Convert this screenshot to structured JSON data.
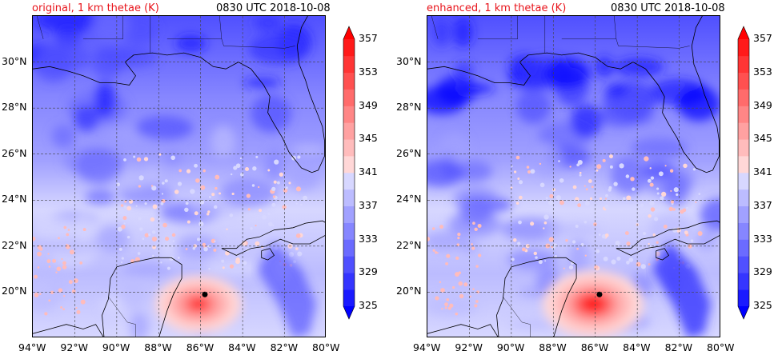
{
  "panels": [
    {
      "id": "original",
      "title": "original, 1 km thetae (K)",
      "timestamp": "0830 UTC 2018-10-08"
    },
    {
      "id": "enhanced",
      "title": "enhanced, 1 km thetae (K)",
      "timestamp": "0830 UTC 2018-10-08"
    }
  ],
  "chart_data": {
    "type": "heatmap",
    "variable": "1 km thetae (K)",
    "x_ticks": [
      "94°W",
      "92°W",
      "90°W",
      "88°W",
      "86°W",
      "84°W",
      "82°W",
      "80°W"
    ],
    "y_ticks": [
      "20°N",
      "22°N",
      "24°N",
      "26°N",
      "28°N",
      "30°N"
    ],
    "xlim_lon": [
      -94,
      -80
    ],
    "ylim_lat": [
      18,
      32
    ],
    "grid": true,
    "colorbar": {
      "levels": [
        325,
        327,
        329,
        331,
        333,
        335,
        337,
        339,
        341,
        343,
        345,
        347,
        349,
        351,
        353,
        355,
        357
      ],
      "tick_labels": [
        "325",
        "329",
        "333",
        "337",
        "341",
        "345",
        "349",
        "353",
        "357"
      ],
      "extend": "both",
      "colors": [
        "#0000ff",
        "#1a1aff",
        "#3535ff",
        "#5050ff",
        "#6b6bff",
        "#8686ff",
        "#a1a1ff",
        "#bcbcff",
        "#d7d7ff",
        "#ffd7d7",
        "#ffbcbc",
        "#ffa1a1",
        "#ff8686",
        "#ff6b6b",
        "#ff5050",
        "#ff3535",
        "#ff1a1a",
        "#ff0000"
      ]
    },
    "storm_center": {
      "lon": -85.8,
      "lat": 19.9
    }
  }
}
